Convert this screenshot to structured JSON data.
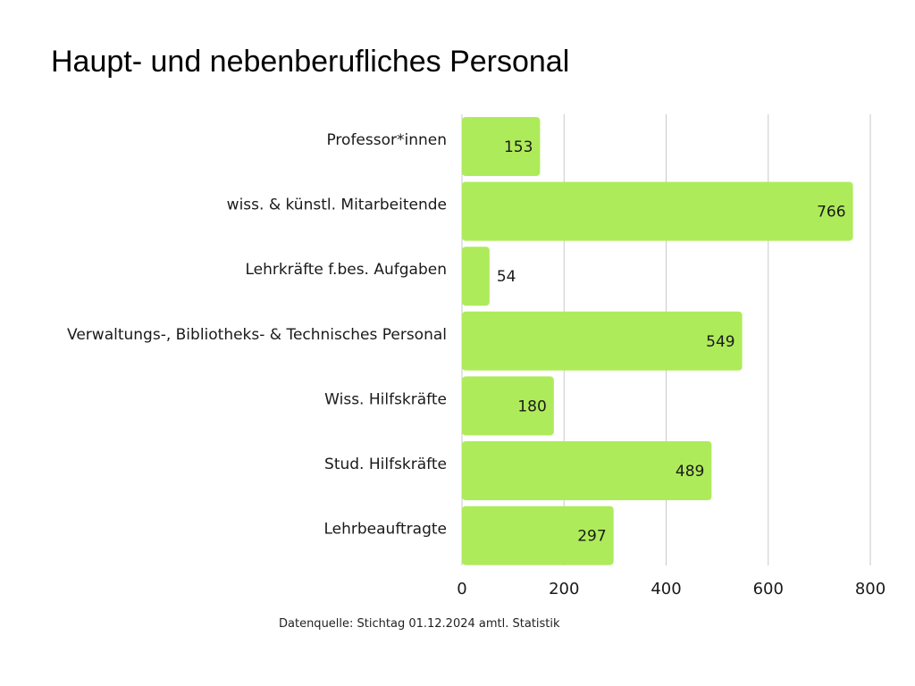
{
  "title": "Haupt- und nebenberufliches Personal",
  "source": "Datenquelle: Stichtag 01.12.2024 amtl. Statistik",
  "colors": {
    "bar": "#aeeb5a",
    "grid": "#c9c9c9",
    "text": "#1a1a1a"
  },
  "chart_data": {
    "type": "bar",
    "orientation": "horizontal",
    "categories": [
      "Professor*innen",
      "wiss. & künstl. Mitarbeitende",
      "Lehrkräfte f.bes. Aufgaben",
      "Verwaltungs-, Bibliotheks- & Technisches Personal",
      "Wiss. Hilfskräfte",
      "Stud. Hilfskräfte",
      "Lehrbeauftragte"
    ],
    "values": [
      153,
      766,
      54,
      549,
      180,
      489,
      297
    ],
    "xlim": [
      0,
      800
    ],
    "xticks": [
      0,
      200,
      400,
      600,
      800
    ],
    "grid": "vertical",
    "legend": "none"
  }
}
